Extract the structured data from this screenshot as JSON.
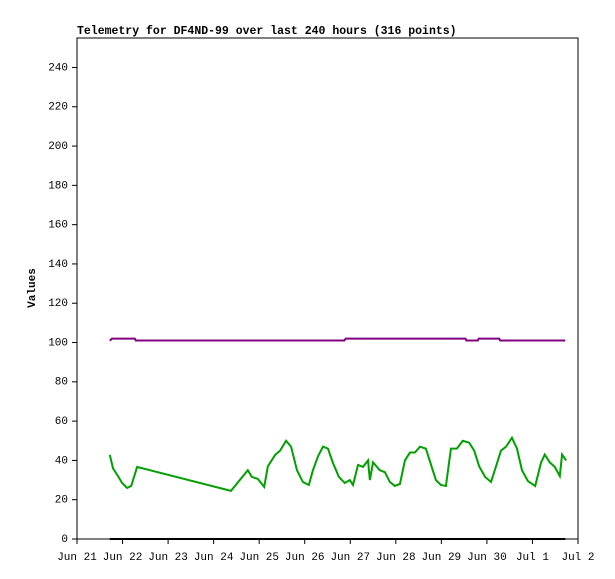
{
  "chart_data": {
    "type": "line",
    "title": "Telemetry for DF4ND-99 over last 240 hours (316 points)",
    "y_label": "Values",
    "xlim": [
      21,
      32
    ],
    "xticks": [
      {
        "value": 21,
        "label": "Jun 21"
      },
      {
        "value": 22,
        "label": "Jun 22"
      },
      {
        "value": 23,
        "label": "Jun 23"
      },
      {
        "value": 24,
        "label": "Jun 24"
      },
      {
        "value": 25,
        "label": "Jun 25"
      },
      {
        "value": 26,
        "label": "Jun 26"
      },
      {
        "value": 27,
        "label": "Jun 27"
      },
      {
        "value": 28,
        "label": "Jun 28"
      },
      {
        "value": 29,
        "label": "Jun 29"
      },
      {
        "value": 30,
        "label": "Jun 30"
      },
      {
        "value": 31,
        "label": "Jul 1"
      },
      {
        "value": 32,
        "label": "Jul 2"
      }
    ],
    "ylim": [
      0,
      255
    ],
    "yticks": [
      0,
      20,
      40,
      60,
      80,
      100,
      120,
      140,
      160,
      180,
      200,
      220,
      240
    ],
    "grid": false,
    "series": [
      {
        "color": "#800080",
        "x": [
          21.72,
          21.77,
          22.27,
          22.29,
          26.87,
          26.9,
          29.53,
          29.55,
          29.8,
          29.82,
          30.27,
          30.29,
          31.72
        ],
        "values": [
          101,
          102,
          102,
          101,
          101,
          102,
          102,
          101,
          101,
          102,
          102,
          101,
          101
        ]
      },
      {
        "color": "#00a000",
        "x": [
          21.72,
          21.79,
          21.9,
          21.99,
          22.1,
          22.19,
          22.32,
          24.38,
          24.75,
          24.84,
          24.97,
          25.11,
          25.19,
          25.35,
          25.46,
          25.59,
          25.7,
          25.83,
          25.96,
          26.09,
          26.18,
          26.29,
          26.4,
          26.51,
          26.62,
          26.75,
          26.88,
          26.99,
          27.06,
          27.17,
          27.28,
          27.39,
          27.43,
          27.5,
          27.65,
          27.76,
          27.87,
          27.98,
          28.09,
          28.2,
          28.31,
          28.42,
          28.53,
          28.66,
          28.77,
          28.88,
          28.99,
          29.1,
          29.21,
          29.34,
          29.47,
          29.61,
          29.72,
          29.83,
          29.96,
          30.09,
          30.2,
          30.31,
          30.42,
          30.55,
          30.66,
          30.77,
          30.9,
          31.06,
          31.19,
          31.27,
          31.38,
          31.49,
          31.6,
          31.65,
          31.74
        ],
        "values": [
          42.8,
          36,
          32,
          28.5,
          26,
          27,
          36.7,
          24.5,
          35,
          31.6,
          30.6,
          26.5,
          37,
          42.8,
          45,
          50,
          47,
          35,
          29,
          27.5,
          35,
          42,
          47,
          46,
          38.7,
          31.6,
          28.5,
          30,
          27.5,
          37.7,
          36.7,
          40,
          30,
          39,
          35,
          34,
          29,
          27,
          28,
          40,
          44,
          44,
          47,
          46,
          38,
          30,
          27.5,
          27,
          46,
          46,
          50,
          49,
          45,
          37,
          31.6,
          29,
          37,
          45,
          47,
          51.5,
          46,
          35,
          29.5,
          27,
          39,
          43,
          39,
          36.7,
          32,
          43,
          40
        ]
      },
      {
        "color": "#000000",
        "x": [
          21.72,
          31.72
        ],
        "values": [
          0,
          0
        ]
      }
    ]
  }
}
